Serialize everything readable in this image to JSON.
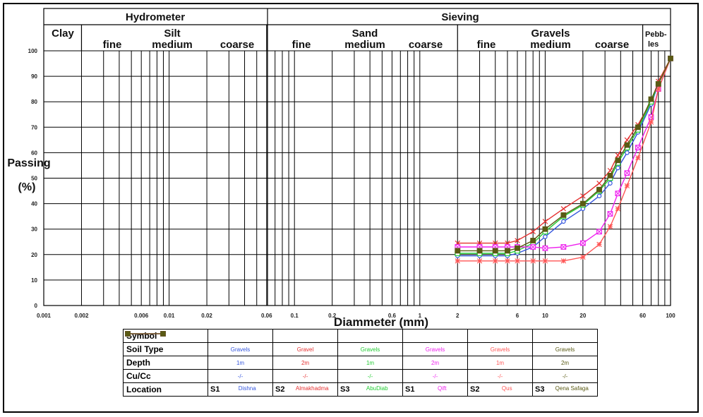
{
  "chart_data": {
    "type": "line",
    "xscale": "log",
    "xlim": [
      0.001,
      100
    ],
    "ylim": [
      0,
      100
    ],
    "xlabel": "Diammeter (mm)",
    "ylabel_line1": "Passing",
    "ylabel_line2": "(%)",
    "xticks": [
      "0.001",
      "0.002",
      "0.006",
      "0.01",
      "0.02",
      "0.06",
      "0.1",
      "0.2",
      "0.6",
      "1",
      "2",
      "6",
      "10",
      "20",
      "60",
      "100"
    ],
    "yticks": [
      "0",
      "10",
      "20",
      "30",
      "40",
      "50",
      "60",
      "70",
      "80",
      "90",
      "100"
    ],
    "headers": {
      "hydrometer": "Hydrometer",
      "sieving": "Sieving",
      "clay": "Clay",
      "silt": "Silt",
      "silt_fine": "fine",
      "silt_medium": "medium",
      "silt_coarse": "coarse",
      "sand": "Sand",
      "sand_fine": "fine",
      "sand_medium": "medium",
      "sand_coarse": "coarse",
      "gravels": "Gravels",
      "gravels_fine": "fine",
      "gravels_medium": "medium",
      "gravels_coarse": "coarse",
      "pebbles_line1": "Pebb-",
      "pebbles_line2": "les"
    },
    "x": [
      2,
      3,
      4,
      5,
      6,
      8,
      10,
      14,
      20,
      27,
      33,
      38,
      45,
      55,
      70,
      80,
      100
    ],
    "series": [
      {
        "marker": "circle",
        "color": "#3355dd",
        "values": [
          19.5,
          19.5,
          19.5,
          19.5,
          20.5,
          23,
          27,
          33,
          38,
          43,
          48,
          54,
          60,
          68,
          79,
          87,
          97
        ]
      },
      {
        "marker": "x",
        "color": "#e53030",
        "values": [
          24.5,
          24.5,
          24.5,
          24.5,
          25.5,
          29,
          33,
          38,
          43,
          48,
          53,
          59,
          65,
          71,
          80,
          88,
          97
        ]
      },
      {
        "marker": "square",
        "color": "#22cc33",
        "values": [
          20.5,
          20.5,
          20.5,
          20.5,
          21.5,
          24.5,
          29,
          35,
          39.5,
          45,
          50,
          56,
          62,
          69,
          80,
          87,
          97
        ]
      },
      {
        "marker": "square-x",
        "color": "#ee22ee",
        "values": [
          23,
          23,
          23,
          23,
          23,
          23,
          22.5,
          23,
          24.5,
          29,
          36,
          44,
          52,
          62,
          74,
          85,
          97
        ]
      },
      {
        "marker": "star",
        "color": "#ff5555",
        "values": [
          17.5,
          17.5,
          17.5,
          17.5,
          17.5,
          17.5,
          17.5,
          17.5,
          19,
          24,
          31,
          38,
          47,
          58,
          72,
          85,
          97
        ]
      },
      {
        "marker": "filled-square",
        "color": "#5a5a14",
        "values": [
          21.5,
          21.5,
          21.5,
          21.5,
          22.5,
          25.5,
          30,
          35.5,
          40,
          45.5,
          51,
          57,
          63,
          70,
          81,
          87,
          97
        ]
      }
    ]
  },
  "legend": {
    "row_labels": [
      "Symbol",
      "Soil Type",
      "Depth",
      "Cu/Cc",
      "Location"
    ],
    "columns": [
      {
        "soil_type": "Gravels",
        "depth": "1m",
        "cucc": "-/-",
        "site_tag": "S1",
        "location": "Dishna",
        "color": "#3355dd"
      },
      {
        "soil_type": "Gravel",
        "depth": "2m",
        "cucc": "-/-",
        "site_tag": "S2",
        "location": "Almakhadma",
        "color": "#e53030"
      },
      {
        "soil_type": "Gravels",
        "depth": "1m",
        "cucc": "-/-",
        "site_tag": "S3",
        "location": "AbuDiab",
        "color": "#22cc33"
      },
      {
        "soil_type": "Gravels",
        "depth": "2m",
        "cucc": "-/-",
        "site_tag": "S1",
        "location": "Qift",
        "color": "#ee22ee"
      },
      {
        "soil_type": "Gravels",
        "depth": "1m",
        "cucc": "-/-",
        "site_tag": "S2",
        "location": "Qus",
        "color": "#ff5555"
      },
      {
        "soil_type": "Gravels",
        "depth": "2m",
        "cucc": "-/-",
        "site_tag": "S3",
        "location": "Qena Safaga",
        "color": "#5a5a14"
      }
    ]
  }
}
